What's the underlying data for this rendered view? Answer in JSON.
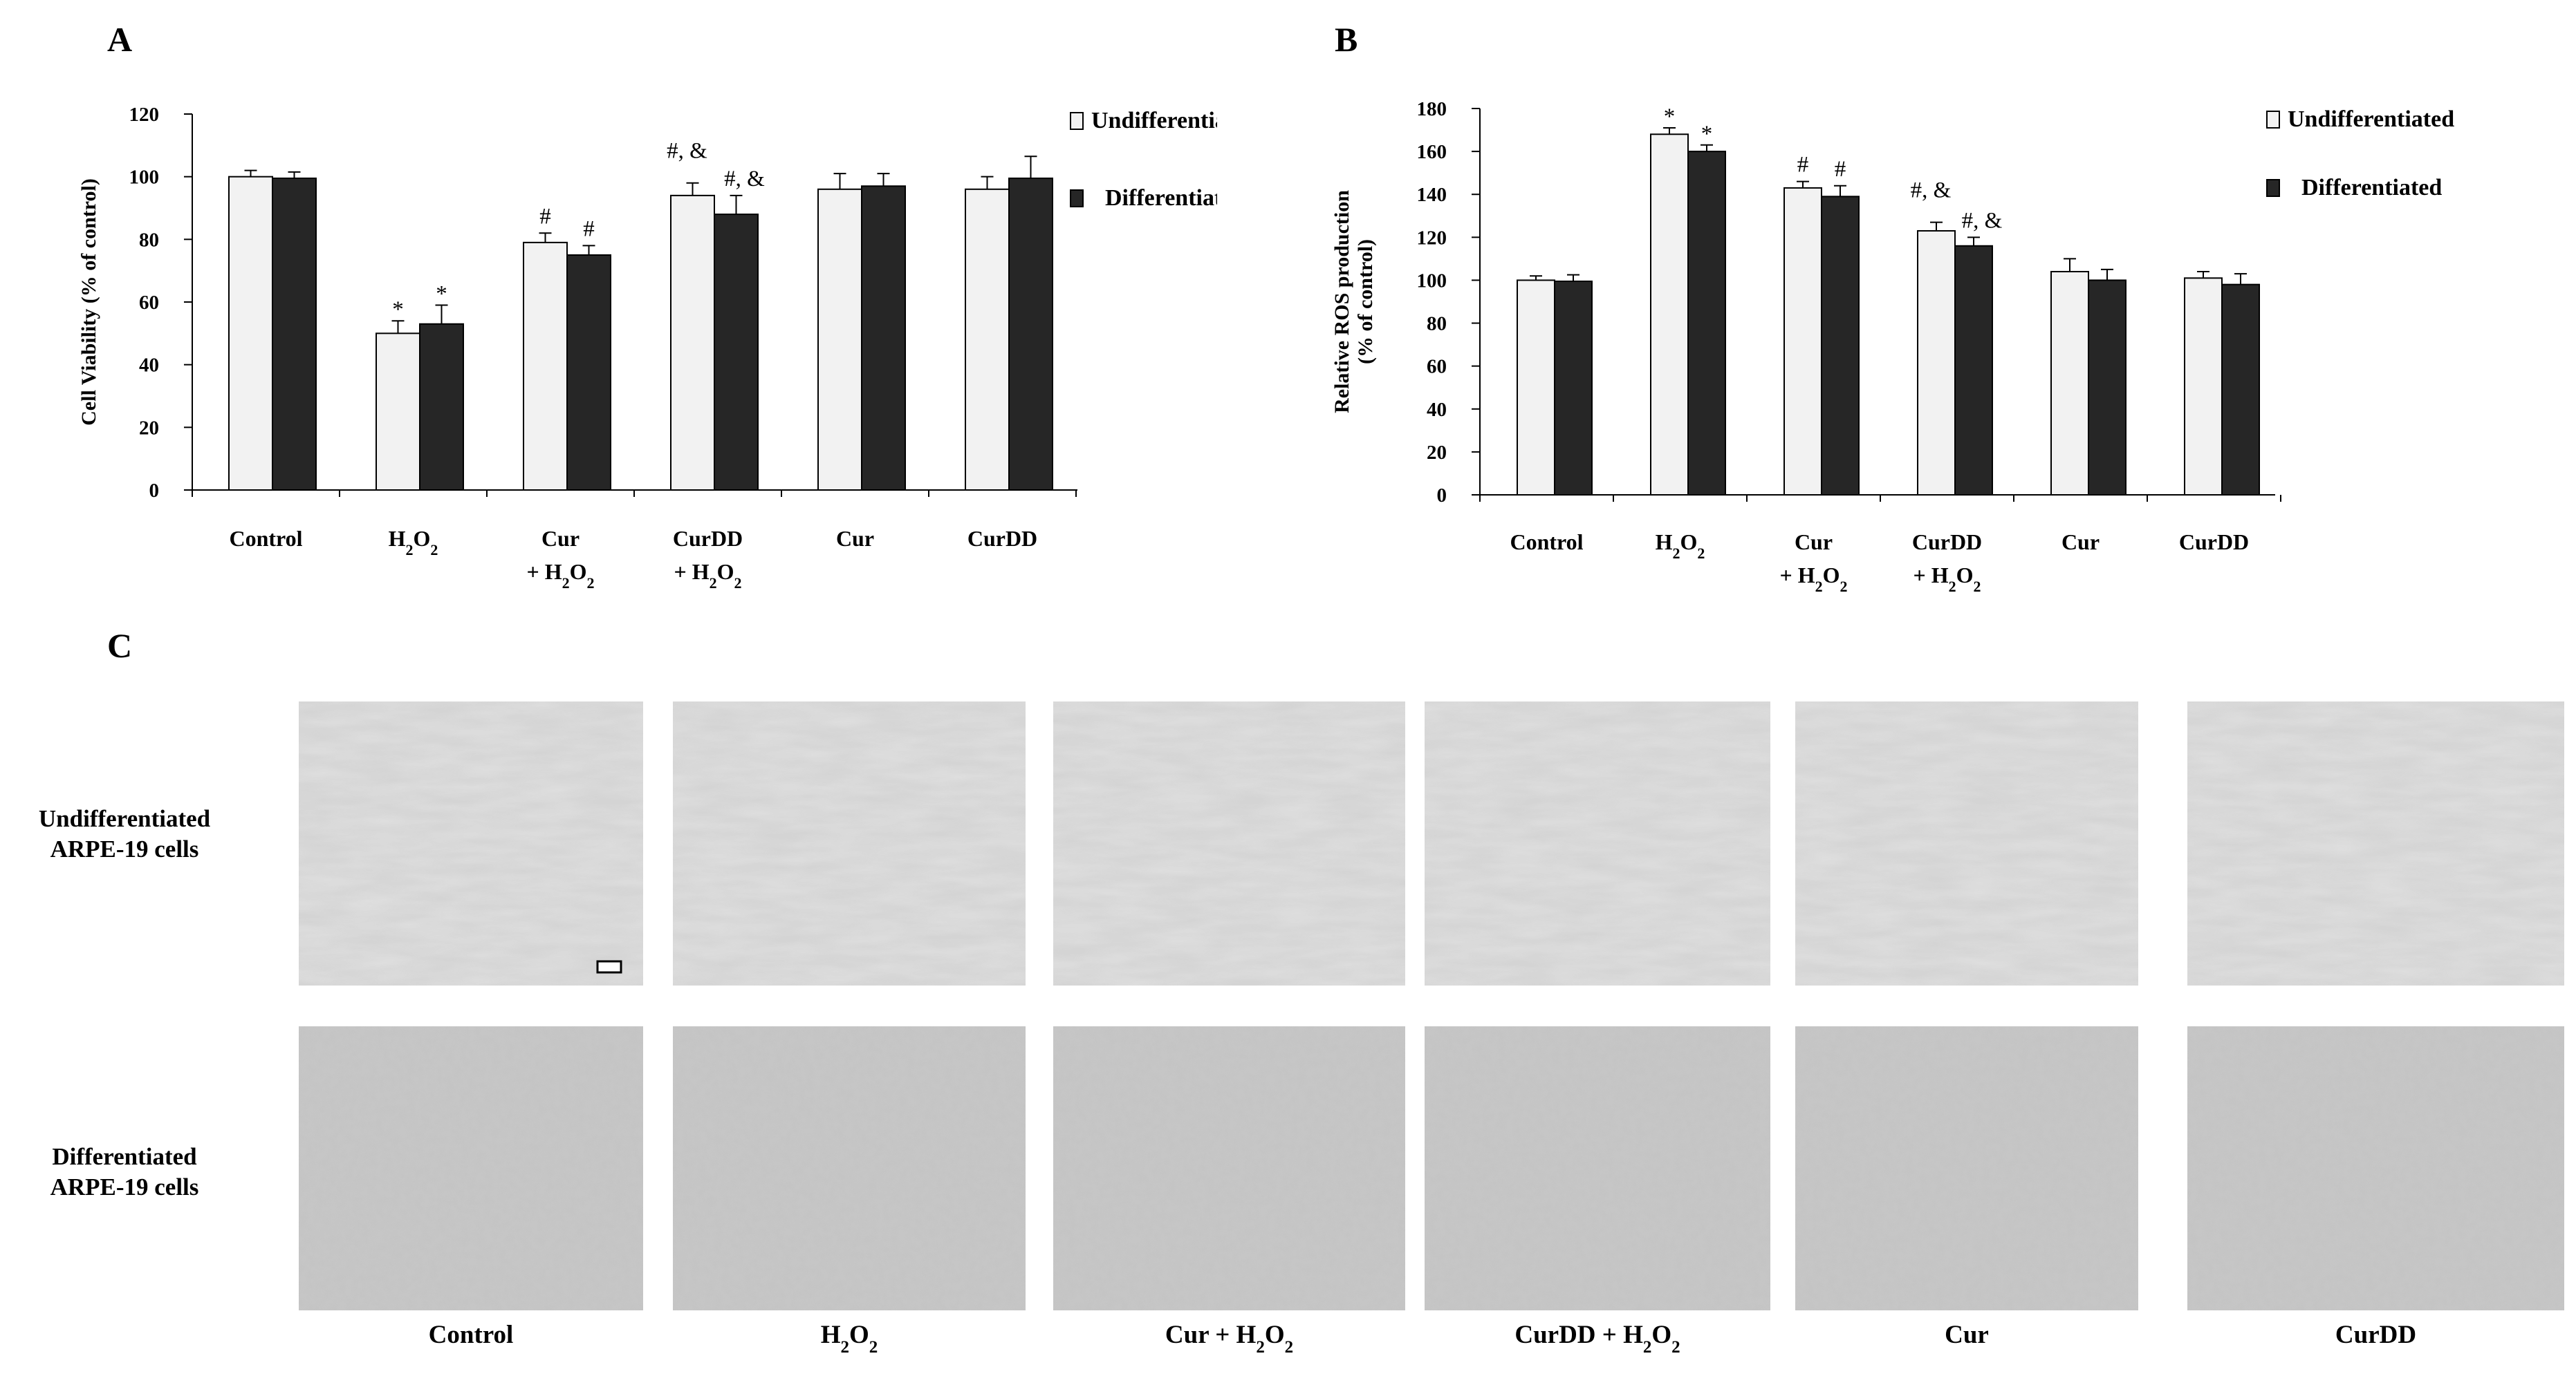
{
  "panels": {
    "a": "A",
    "b": "B",
    "c": "C"
  },
  "chart_data": [
    {
      "type": "bar",
      "panel": "A",
      "ylabel": "Cell Viability (% of control)",
      "ylim": [
        0,
        120
      ],
      "yticks": [
        0,
        20,
        40,
        60,
        80,
        100,
        120
      ],
      "categories": [
        "Control",
        "H2O2",
        "Cur + H2O2",
        "CurDD + H2O2",
        "Cur",
        "CurDD"
      ],
      "category_display": [
        {
          "line1": "Control",
          "line2": ""
        },
        {
          "line1": "H",
          "line2": ""
        },
        {
          "line1": "Cur",
          "line2": "+ H"
        },
        {
          "line1": "CurDD",
          "line2": "+ H"
        },
        {
          "line1": "Cur",
          "line2": ""
        },
        {
          "line1": "CurDD",
          "line2": ""
        }
      ],
      "series": [
        {
          "name": "Undifferentiated",
          "color": "#f2f2f2",
          "values": [
            100,
            50,
            79,
            94,
            96,
            96
          ],
          "errors": [
            2,
            4,
            3,
            4,
            5,
            4
          ],
          "annotations": [
            "",
            "*",
            "#",
            "#, &",
            "",
            ""
          ]
        },
        {
          "name": "Differentiated",
          "color": "#262626",
          "values": [
            99.5,
            53,
            75,
            88,
            97,
            99.5
          ],
          "errors": [
            2,
            6,
            3,
            6,
            4,
            7
          ],
          "annotations": [
            "",
            "*",
            "#",
            "#, &",
            "",
            ""
          ]
        }
      ],
      "legend_position": "top-right",
      "grid": false
    },
    {
      "type": "bar",
      "panel": "B",
      "ylabel": "Relative ROS production (% of control)",
      "ylabel_lines": [
        "Relative ROS production",
        "(% of control)"
      ],
      "ylim": [
        0,
        180
      ],
      "yticks": [
        0,
        20,
        40,
        60,
        80,
        100,
        120,
        140,
        160,
        180
      ],
      "categories": [
        "Control",
        "H2O2",
        "Cur + H2O2",
        "CurDD + H2O2",
        "Cur",
        "CurDD"
      ],
      "category_display": [
        {
          "line1": "Control",
          "line2": ""
        },
        {
          "line1": "H",
          "line2": ""
        },
        {
          "line1": "Cur",
          "line2": "+ H"
        },
        {
          "line1": "CurDD",
          "line2": "+ H"
        },
        {
          "line1": "Cur",
          "line2": ""
        },
        {
          "line1": "CurDD",
          "line2": ""
        }
      ],
      "series": [
        {
          "name": "Undifferentiated",
          "color": "#f2f2f2",
          "values": [
            100,
            168,
            143,
            123,
            104,
            101
          ],
          "errors": [
            2,
            3,
            3,
            4,
            6,
            3
          ],
          "annotations": [
            "",
            "*",
            "#",
            "#, &",
            "",
            ""
          ]
        },
        {
          "name": "Differentiated",
          "color": "#262626",
          "values": [
            99.5,
            160,
            139,
            116,
            100,
            98
          ],
          "errors": [
            3,
            3,
            5,
            4,
            5,
            5
          ],
          "annotations": [
            "",
            "*",
            "#",
            "#, &",
            "",
            ""
          ]
        }
      ],
      "legend_position": "top-right",
      "grid": false
    }
  ],
  "micrographs": {
    "rows": [
      {
        "label_line1": "Undifferentiated",
        "label_line2": "ARPE-19 cells"
      },
      {
        "label_line1": "Differentiated",
        "label_line2": "ARPE-19 cells"
      }
    ],
    "columns": [
      {
        "main": "Control",
        "sub": "",
        "tail": ""
      },
      {
        "main": "H",
        "sub": "2",
        "tail": "O"
      },
      {
        "main": "Cur + H",
        "sub": "2",
        "tail": "O"
      },
      {
        "main": "CurDD + H",
        "sub": "2",
        "tail": "O"
      },
      {
        "main": "Cur",
        "sub": "",
        "tail": ""
      },
      {
        "main": "CurDD",
        "sub": "",
        "tail": ""
      }
    ]
  },
  "symbols": {
    "h2o2_o": "O",
    "sub2": "2"
  },
  "colors": {
    "undifferentiated_fill": "#f2f2f2",
    "differentiated_fill": "#262626",
    "axis": "#000000",
    "micrograph_bg": "#c8c8c8"
  }
}
